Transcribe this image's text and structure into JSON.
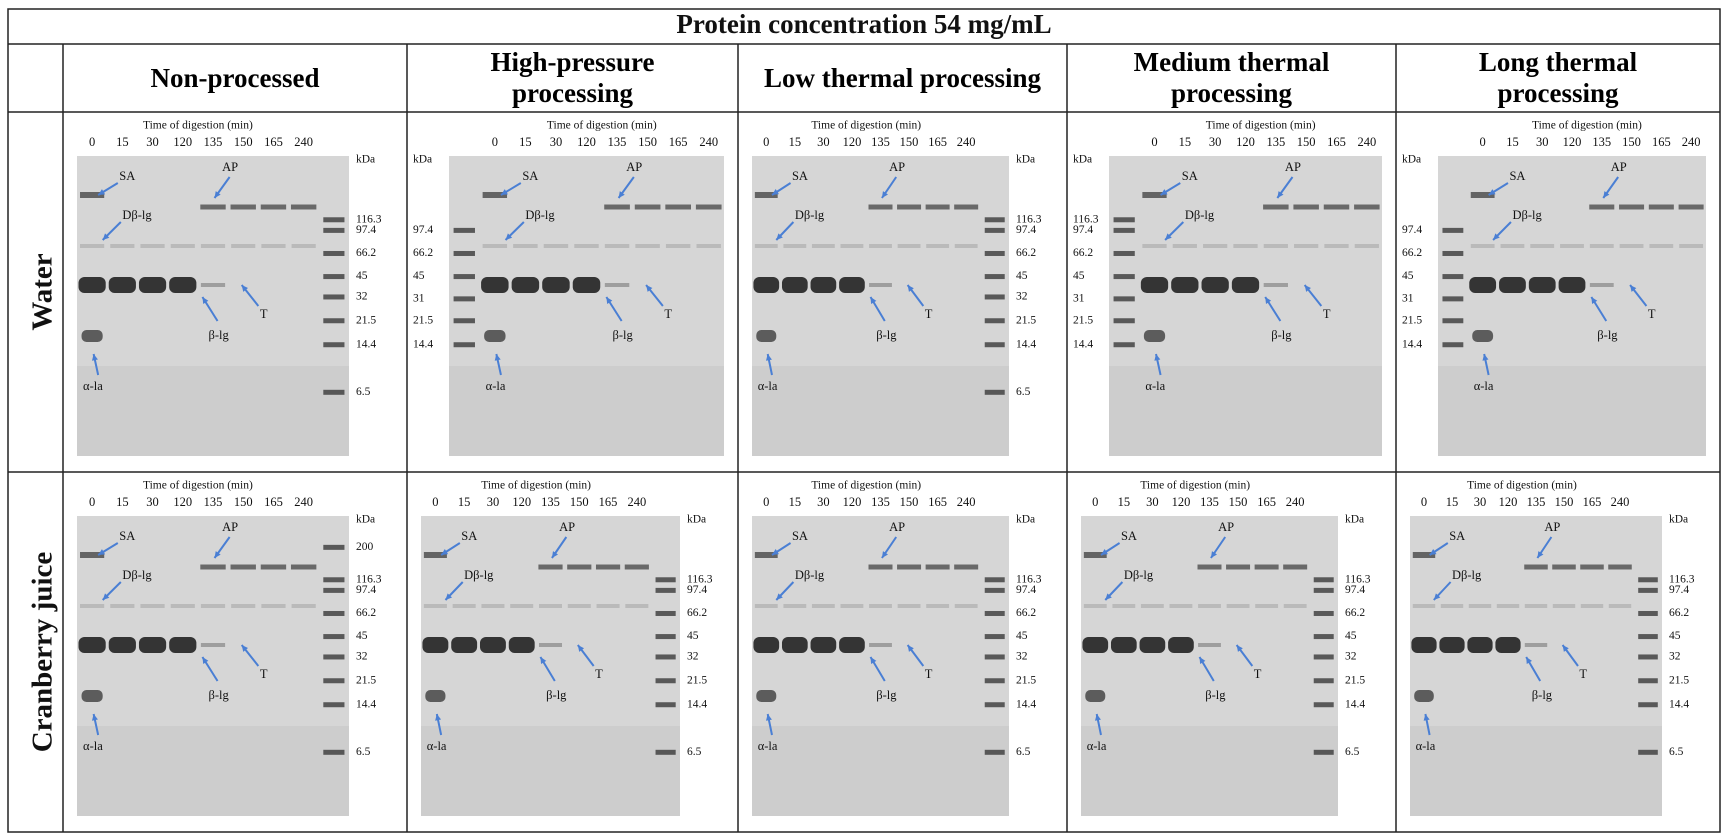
{
  "title": "Protein concentration 54 mg/mL",
  "columns": [
    "Non-processed",
    "High-pressure processing",
    "Low thermal processing",
    "Medium thermal processing",
    "Long thermal processing"
  ],
  "rows": [
    "Water",
    "Cranberry juice"
  ],
  "gel_axis_title": "Time of digestion (min)",
  "lanes": [
    "0",
    "15",
    "30",
    "120",
    "135",
    "150",
    "165",
    "240"
  ],
  "annotations": [
    "SA",
    "Dβ-lg",
    "AP",
    "T",
    "β-lg",
    "α-la"
  ],
  "panels": [
    [
      {
        "markers": [
          "kDa",
          "116.3",
          "97.4",
          "66.2",
          "45",
          "32",
          "21.5",
          "14.4",
          "6.5"
        ]
      },
      {
        "markers": [
          "kDa",
          "97.4",
          "66.2",
          "45",
          "31",
          "21.5",
          "14.4"
        ]
      },
      {
        "markers": [
          "kDa",
          "116.3",
          "97.4",
          "66.2",
          "45",
          "32",
          "21.5",
          "14.4",
          "6.5"
        ]
      },
      {
        "markers": [
          "kDa",
          "116.3",
          "97.4",
          "66.2",
          "45",
          "31",
          "21.5",
          "14.4"
        ]
      },
      {
        "markers": [
          "kDa",
          "97.4",
          "66.2",
          "45",
          "31",
          "21.5",
          "14.4"
        ]
      }
    ],
    [
      {
        "markers": [
          "kDa",
          "200",
          "116.3",
          "97.4",
          "66.2",
          "45",
          "32",
          "21.5",
          "14.4",
          "6.5"
        ]
      },
      {
        "markers": [
          "kDa",
          "116.3",
          "97.4",
          "66.2",
          "45",
          "32",
          "21.5",
          "14.4",
          "6.5"
        ]
      },
      {
        "markers": [
          "kDa",
          "116.3",
          "97.4",
          "66.2",
          "45",
          "32",
          "21.5",
          "14.4",
          "6.5"
        ]
      },
      {
        "markers": [
          "kDa",
          "116.3",
          "97.4",
          "66.2",
          "45",
          "32",
          "21.5",
          "14.4",
          "6.5"
        ]
      },
      {
        "markers": [
          "kDa",
          "116.3",
          "97.4",
          "66.2",
          "45",
          "32",
          "21.5",
          "14.4",
          "6.5"
        ]
      }
    ]
  ]
}
